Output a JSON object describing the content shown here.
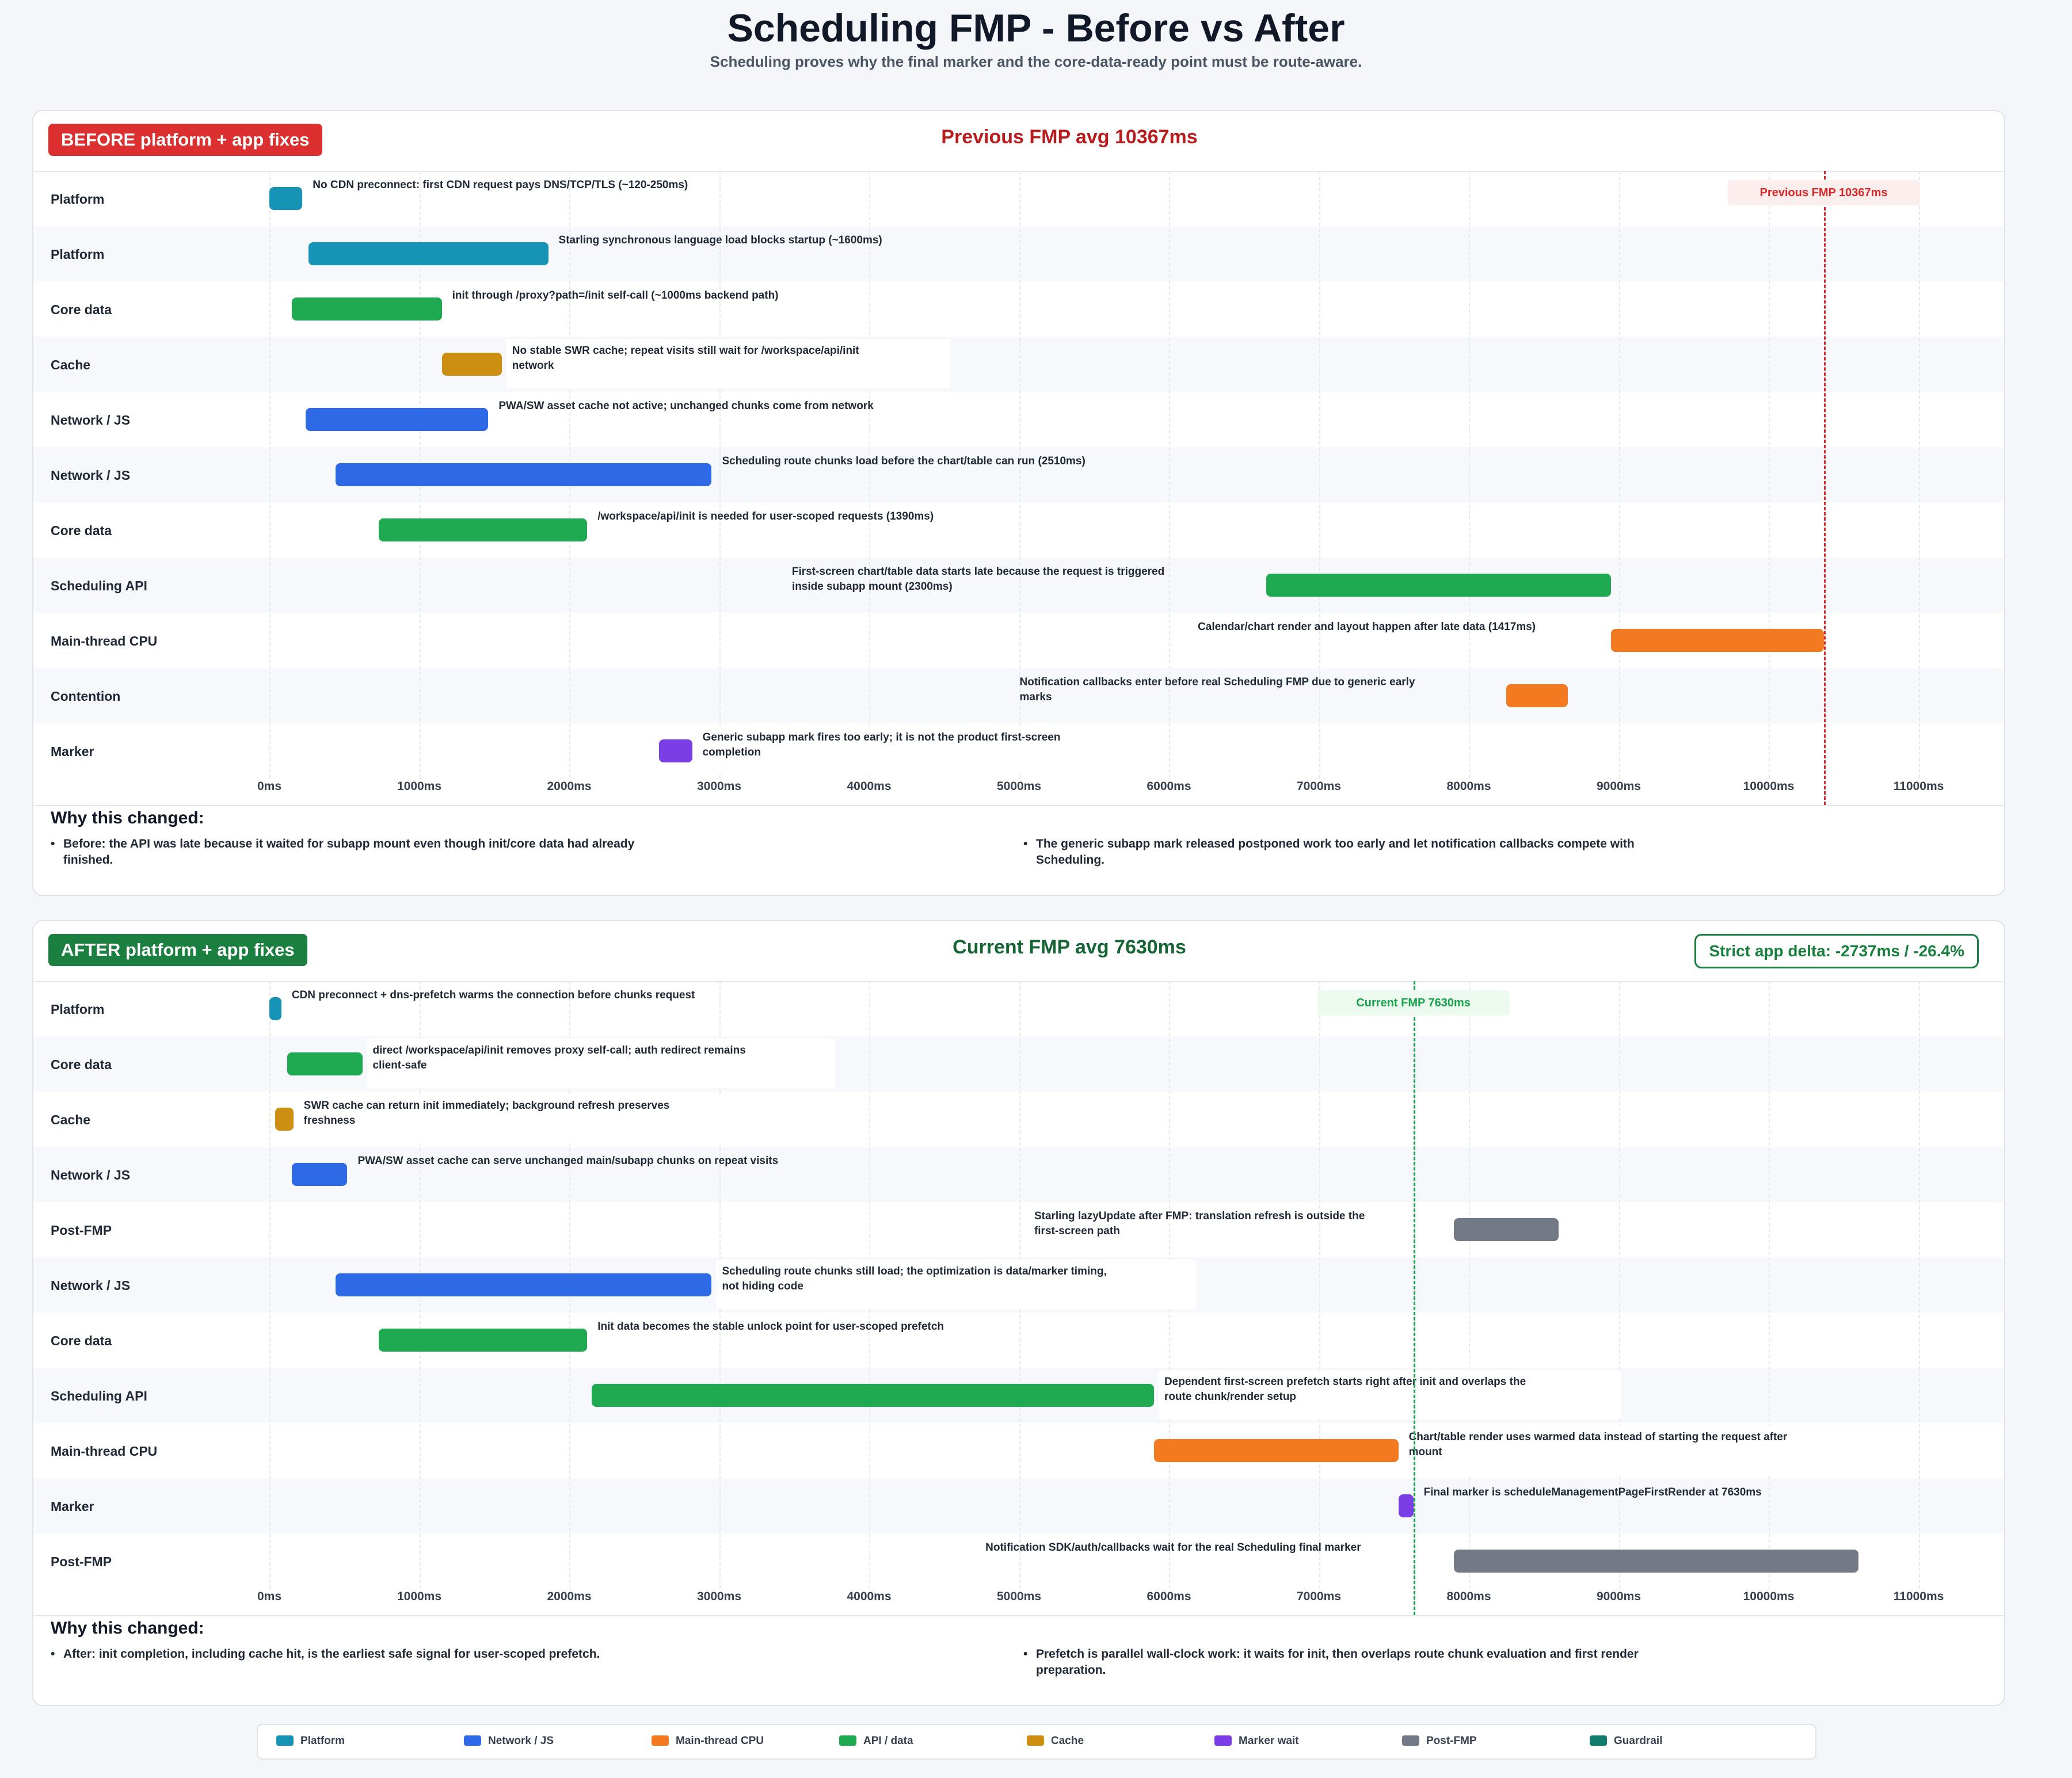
{
  "title": "Scheduling FMP - Before vs After",
  "subtitle": "Scheduling proves why the final marker and the core-data-ready point must be route-aware.",
  "colors": {
    "Platform": "#1793b5",
    "Network / JS": "#2f6ae6",
    "Main-thread CPU": "#f47a22",
    "API / data": "#1faa51",
    "Cache": "#cd8f12",
    "Marker wait": "#7a3de6",
    "Post-FMP": "#737a86",
    "Guardrail": "#127c6f"
  },
  "legend": [
    {
      "label": "Platform",
      "key": "Platform"
    },
    {
      "label": "Network / JS",
      "key": "Network / JS"
    },
    {
      "label": "Main-thread CPU",
      "key": "Main-thread CPU"
    },
    {
      "label": "API / data",
      "key": "API / data"
    },
    {
      "label": "Cache",
      "key": "Cache"
    },
    {
      "label": "Marker wait",
      "key": "Marker wait"
    },
    {
      "label": "Post-FMP",
      "key": "Post-FMP"
    },
    {
      "label": "Guardrail",
      "key": "Guardrail"
    }
  ],
  "chart_data": [
    {
      "type": "bar",
      "orientation": "gantt",
      "badge": "BEFORE platform + app fixes",
      "badge_color": "#dc2f2f",
      "avg_label": "Previous FMP avg 10367ms",
      "avg_color": "#b91c1c",
      "xlim": [
        0,
        11000
      ],
      "ticks": [
        0,
        1000,
        2000,
        3000,
        4000,
        5000,
        6000,
        7000,
        8000,
        9000,
        10000,
        11000
      ],
      "tick_labels": [
        "0ms",
        "1000ms",
        "2000ms",
        "3000ms",
        "4000ms",
        "5000ms",
        "6000ms",
        "7000ms",
        "8000ms",
        "9000ms",
        "10000ms",
        "11000ms"
      ],
      "marker": {
        "value": 10367,
        "label": "Previous FMP 10367ms",
        "color": "#dc2626",
        "bg": "#fdeeee"
      },
      "rows": [
        {
          "lane": "Platform",
          "category": "Platform",
          "start": 0,
          "end": 220,
          "note": "No CDN preconnect: first CDN request pays DNS/TCP/TLS (~120-250ms)",
          "note_side": "right"
        },
        {
          "lane": "Platform",
          "category": "Platform",
          "start": 260,
          "end": 1860,
          "note": "Starling synchronous language load blocks startup (~1600ms)",
          "note_side": "right"
        },
        {
          "lane": "Core data",
          "category": "API / data",
          "start": 150,
          "end": 1150,
          "note": "init through /proxy?path=/init self-call (~1000ms backend path)",
          "note_side": "right"
        },
        {
          "lane": "Cache",
          "category": "Cache",
          "start": 1150,
          "end": 1550,
          "note": "No stable SWR cache; repeat visits still wait for /workspace/api/init\nnetwork",
          "note_side": "right"
        },
        {
          "lane": "Network / JS",
          "category": "Network / JS",
          "start": 240,
          "end": 1460,
          "note": "PWA/SW asset cache not active; unchanged chunks come from network",
          "note_side": "right"
        },
        {
          "lane": "Network / JS",
          "category": "Network / JS",
          "start": 440,
          "end": 2950,
          "note": "Scheduling route chunks load before the chart/table can run (2510ms)",
          "note_side": "right"
        },
        {
          "lane": "Core data",
          "category": "API / data",
          "start": 730,
          "end": 2120,
          "note": "/workspace/api/init is needed for user-scoped requests (1390ms)",
          "note_side": "right"
        },
        {
          "lane": "Scheduling API",
          "category": "API / data",
          "start": 6650,
          "end": 8950,
          "note": "First-screen chart/table data starts late because the request is triggered\ninside subapp mount (2300ms)",
          "note_side": "left"
        },
        {
          "lane": "Main-thread CPU",
          "category": "Main-thread CPU",
          "start": 8950,
          "end": 10367,
          "note": "Calendar/chart render and layout happen after late data (1417ms)",
          "note_side": "left"
        },
        {
          "lane": "Contention",
          "category": "Main-thread CPU",
          "start": 8250,
          "end": 8660,
          "note": "Notification callbacks enter before real Scheduling FMP due to generic early\nmarks",
          "note_side": "left"
        },
        {
          "lane": "Marker",
          "category": "Marker wait",
          "start": 2600,
          "end": 2820,
          "note": "Generic subapp mark fires too early; it is not the product first-screen\ncompletion",
          "note_side": "right"
        }
      ],
      "why_title": "Why this changed:",
      "why": [
        "Before: the API was late because it waited for subapp mount even though init/core data had already finished.",
        "The generic subapp mark released postponed work too early and let notification callbacks compete with Scheduling."
      ]
    },
    {
      "type": "bar",
      "orientation": "gantt",
      "badge": "AFTER platform + app fixes",
      "badge_color": "#1b7f3f",
      "avg_label": "Current FMP avg 7630ms",
      "avg_color": "#166534",
      "delta_label": "Strict app delta: -2737ms / -26.4%",
      "xlim": [
        0,
        11000
      ],
      "ticks": [
        0,
        1000,
        2000,
        3000,
        4000,
        5000,
        6000,
        7000,
        8000,
        9000,
        10000,
        11000
      ],
      "tick_labels": [
        "0ms",
        "1000ms",
        "2000ms",
        "3000ms",
        "4000ms",
        "5000ms",
        "6000ms",
        "7000ms",
        "8000ms",
        "9000ms",
        "10000ms",
        "11000ms"
      ],
      "marker": {
        "value": 7630,
        "label": "Current FMP 7630ms",
        "color": "#16a34a",
        "bg": "#ecfaf0"
      },
      "rows": [
        {
          "lane": "Platform",
          "category": "Platform",
          "start": 0,
          "end": 80,
          "note": "CDN preconnect + dns-prefetch warms the connection before chunks request",
          "note_side": "right"
        },
        {
          "lane": "Core data",
          "category": "API / data",
          "start": 120,
          "end": 620,
          "note": "direct /workspace/api/init removes proxy self-call; auth redirect remains\nclient-safe",
          "note_side": "right"
        },
        {
          "lane": "Cache",
          "category": "Cache",
          "start": 40,
          "end": 160,
          "note": "SWR cache can return init immediately; background refresh preserves\nfreshness",
          "note_side": "right"
        },
        {
          "lane": "Network / JS",
          "category": "Network / JS",
          "start": 150,
          "end": 520,
          "note": "PWA/SW asset cache can serve unchanged main/subapp chunks on repeat visits",
          "note_side": "right"
        },
        {
          "lane": "Post-FMP",
          "category": "Post-FMP",
          "start": 7900,
          "end": 8600,
          "note": "Starling lazyUpdate after FMP: translation refresh is outside the\nfirst-screen path",
          "note_side": "left"
        },
        {
          "lane": "Network / JS",
          "category": "Network / JS",
          "start": 440,
          "end": 2950,
          "note": "Scheduling route chunks still load; the optimization is data/marker timing,\nnot hiding code",
          "note_side": "right"
        },
        {
          "lane": "Core data",
          "category": "API / data",
          "start": 730,
          "end": 2120,
          "note": "Init data becomes the stable unlock point for user-scoped prefetch",
          "note_side": "right"
        },
        {
          "lane": "Scheduling API",
          "category": "API / data",
          "start": 2150,
          "end": 5900,
          "note": "Dependent first-screen prefetch starts right after init and overlaps the\nroute chunk/render setup",
          "note_side": "right"
        },
        {
          "lane": "Main-thread CPU",
          "category": "Main-thread CPU",
          "start": 5900,
          "end": 7530,
          "note": "Chart/table render uses warmed data instead of starting the request after\nmount",
          "note_side": "right"
        },
        {
          "lane": "Marker",
          "category": "Marker wait",
          "start": 7530,
          "end": 7630,
          "note": "Final marker is scheduleManagementPageFirstRender at 7630ms",
          "note_side": "right"
        },
        {
          "lane": "Post-FMP",
          "category": "Post-FMP",
          "start": 7900,
          "end": 10600,
          "note": "Notification SDK/auth/callbacks wait for the real Scheduling final marker",
          "note_side": "left"
        }
      ],
      "why_title": "Why this changed:",
      "why": [
        "After: init completion, including cache hit, is the earliest safe signal for user-scoped prefetch.",
        "Prefetch is parallel wall-clock work: it waits for init, then overlaps route chunk evaluation and first render preparation."
      ]
    }
  ]
}
